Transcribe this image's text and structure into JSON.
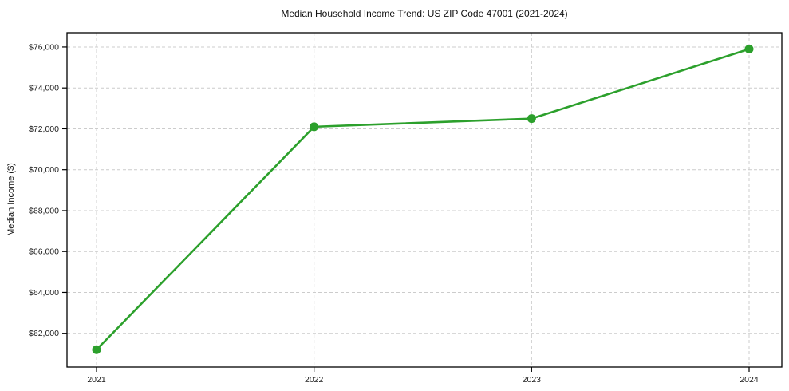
{
  "chart_data": {
    "type": "line",
    "title": "Median Household Income Trend: US ZIP Code 47001 (2021-2024)",
    "xlabel": "",
    "ylabel": "Median Income ($)",
    "x": [
      "2021",
      "2022",
      "2023",
      "2024"
    ],
    "values": [
      61200,
      72100,
      72500,
      75900
    ],
    "yticks": [
      62000,
      64000,
      66000,
      68000,
      70000,
      72000,
      74000,
      76000
    ],
    "ytick_labels": [
      "$62,000",
      "$64,000",
      "$66,000",
      "$68,000",
      "$70,000",
      "$72,000",
      "$74,000",
      "$76,000"
    ],
    "ylim": [
      60350,
      76700
    ],
    "grid": true,
    "grid_style": "dashed",
    "legend": "none",
    "line_color": "#2ca02c",
    "marker": "circle",
    "grid_color": "#cccccc",
    "spine_color": "#000000",
    "text_color": "#1a1a1a",
    "background": "#ffffff"
  }
}
